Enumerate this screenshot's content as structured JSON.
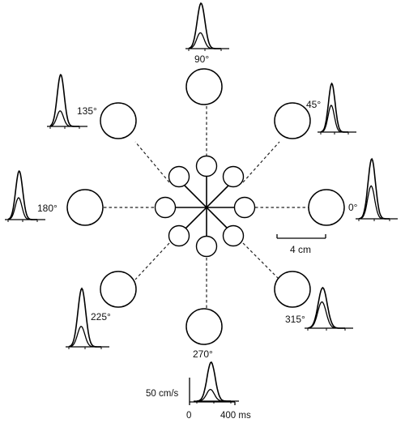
{
  "diagram": {
    "directions": [
      {
        "angle_label": "0°"
      },
      {
        "angle_label": "45°"
      },
      {
        "angle_label": "90°"
      },
      {
        "angle_label": "135°"
      },
      {
        "angle_label": "180°"
      },
      {
        "angle_label": "225°"
      },
      {
        "angle_label": "270°"
      },
      {
        "angle_label": "315°"
      }
    ],
    "distance_scale": {
      "label": "4 cm"
    },
    "velocity_scale": {
      "label": "50 cm/s"
    },
    "time_axis": {
      "start_label": "0",
      "end_label": "400 ms"
    }
  }
}
